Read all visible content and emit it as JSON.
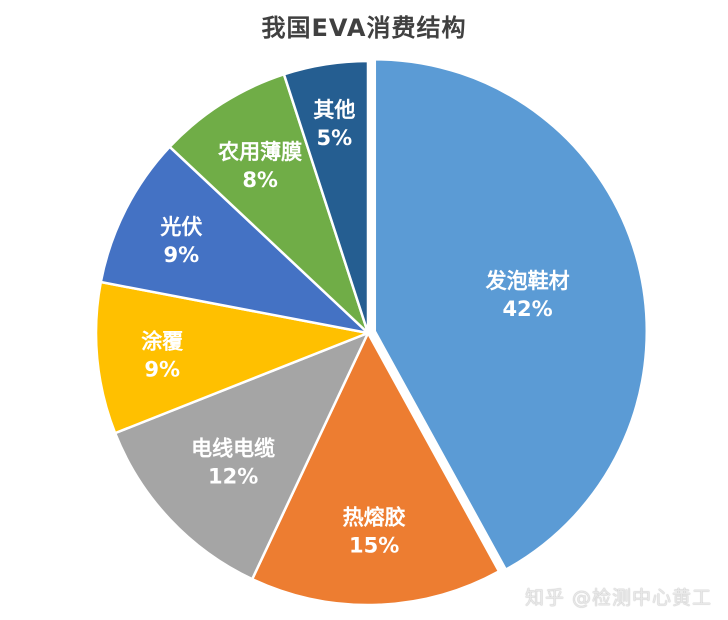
{
  "chart_data": {
    "type": "pie",
    "title": "我国EVA消费结构",
    "slices": [
      {
        "label": "发泡鞋材",
        "value": 42,
        "display": "42%",
        "color": "#5B9BD5",
        "exploded": true
      },
      {
        "label": "热熔胶",
        "value": 15,
        "display": "15%",
        "color": "#ED7D31",
        "exploded": false
      },
      {
        "label": "电线电缆",
        "value": 12,
        "display": "12%",
        "color": "#A5A5A5",
        "exploded": false
      },
      {
        "label": "涂覆",
        "value": 9,
        "display": "9%",
        "color": "#FFC000",
        "exploded": false
      },
      {
        "label": "光伏",
        "value": 9,
        "display": "9%",
        "color": "#4472C4",
        "exploded": false
      },
      {
        "label": "农用薄膜",
        "value": 8,
        "display": "8%",
        "color": "#70AD47",
        "exploded": false
      },
      {
        "label": "其他",
        "value": 5,
        "display": "5%",
        "color": "#255E91",
        "exploded": false
      }
    ],
    "legend": "none",
    "data_labels": "inside"
  },
  "watermark": "知乎 @检测中心黄工"
}
